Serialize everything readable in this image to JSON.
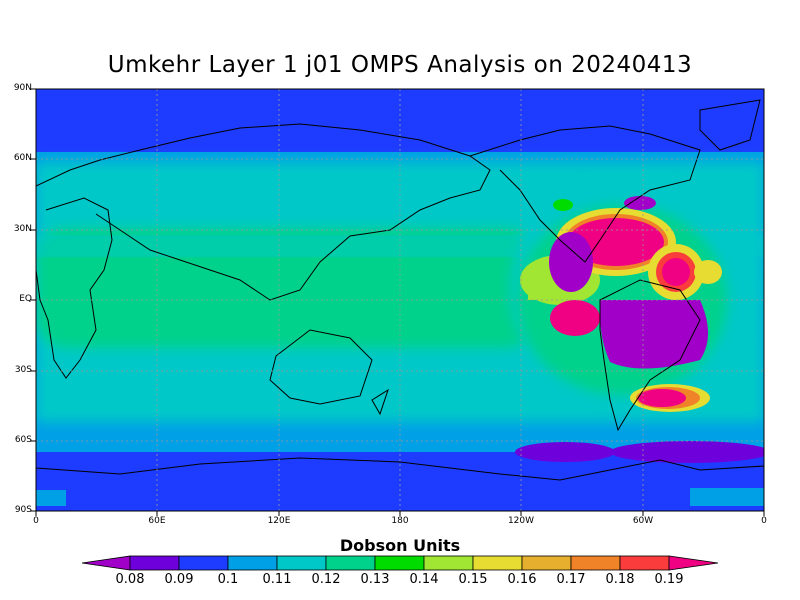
{
  "title": "Umkehr Layer 1 j01 OMPS Analysis on 20240413",
  "axes": {
    "lat_labels": [
      "90N",
      "60N",
      "30N",
      "EQ",
      "30S",
      "60S",
      "90S"
    ],
    "lon_labels": [
      "0",
      "60E",
      "120E",
      "180",
      "120W",
      "60W",
      "0"
    ]
  },
  "colorbar": {
    "title": "Dobson Units",
    "labels": [
      "0.08",
      "0.09",
      "0.1",
      "0.11",
      "0.12",
      "0.13",
      "0.14",
      "0.15",
      "0.16",
      "0.17",
      "0.18",
      "0.19"
    ],
    "colors": [
      "#a000c8",
      "#6e00dc",
      "#1e3cff",
      "#00a0e6",
      "#00c8c8",
      "#00d28c",
      "#00dc00",
      "#a0e632",
      "#e6dc32",
      "#e6af2d",
      "#f08228",
      "#fa3c3c",
      "#f00082"
    ]
  },
  "map_fill": {
    "ocean_color": "#1e3cff",
    "grid_color": "#999999"
  }
}
